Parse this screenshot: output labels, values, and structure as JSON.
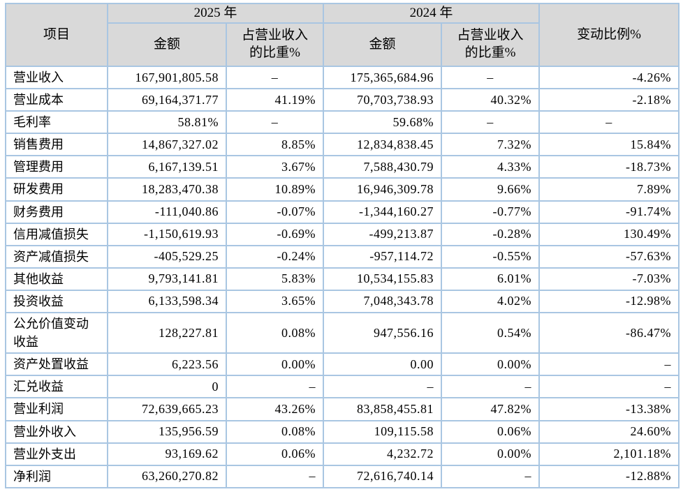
{
  "colors": {
    "border": "#a9c6e2",
    "header_bg": "#d9d9d9",
    "text": "#000000"
  },
  "table": {
    "header": {
      "item": "项目",
      "year2025": "2025 年",
      "year2024": "2024 年",
      "amount": "金额",
      "pct_of_revenue": "占营业收入\n的比重%",
      "change": "变动比例%"
    },
    "column_names": [
      "amount-2025",
      "pct-2025",
      "amount-2024",
      "pct-2024",
      "change-pct"
    ],
    "rows": [
      {
        "label": "营业收入",
        "cells": [
          {
            "v": "167,901,805.58"
          },
          {
            "v": "–",
            "a": "c"
          },
          {
            "v": "175,365,684.96"
          },
          {
            "v": "–",
            "a": "c"
          },
          {
            "v": "-4.26%"
          }
        ]
      },
      {
        "label": "营业成本",
        "cells": [
          {
            "v": "69,164,371.77"
          },
          {
            "v": "41.19%"
          },
          {
            "v": "70,703,738.93"
          },
          {
            "v": "40.32%"
          },
          {
            "v": "-2.18%"
          }
        ]
      },
      {
        "label": "毛利率",
        "cells": [
          {
            "v": "58.81%"
          },
          {
            "v": "–",
            "a": "c"
          },
          {
            "v": "59.68%"
          },
          {
            "v": "–",
            "a": "c"
          },
          {
            "v": "–",
            "a": "c"
          }
        ]
      },
      {
        "label": "销售费用",
        "cells": [
          {
            "v": "14,867,327.02"
          },
          {
            "v": "8.85%"
          },
          {
            "v": "12,834,838.45"
          },
          {
            "v": "7.32%"
          },
          {
            "v": "15.84%"
          }
        ]
      },
      {
        "label": "管理费用",
        "cells": [
          {
            "v": "6,167,139.51"
          },
          {
            "v": "3.67%"
          },
          {
            "v": "7,588,430.79"
          },
          {
            "v": "4.33%"
          },
          {
            "v": "-18.73%"
          }
        ]
      },
      {
        "label": "研发费用",
        "cells": [
          {
            "v": "18,283,470.38"
          },
          {
            "v": "10.89%"
          },
          {
            "v": "16,946,309.78"
          },
          {
            "v": "9.66%"
          },
          {
            "v": "7.89%"
          }
        ]
      },
      {
        "label": "财务费用",
        "cells": [
          {
            "v": "-111,040.86"
          },
          {
            "v": "-0.07%"
          },
          {
            "v": "-1,344,160.27"
          },
          {
            "v": "-0.77%"
          },
          {
            "v": "-91.74%"
          }
        ]
      },
      {
        "label": "信用减值损失",
        "cells": [
          {
            "v": "-1,150,619.93"
          },
          {
            "v": "-0.69%"
          },
          {
            "v": "-499,213.87"
          },
          {
            "v": "-0.28%"
          },
          {
            "v": "130.49%"
          }
        ]
      },
      {
        "label": "资产减值损失",
        "cells": [
          {
            "v": "-405,529.25"
          },
          {
            "v": "-0.24%"
          },
          {
            "v": "-957,114.72"
          },
          {
            "v": "-0.55%"
          },
          {
            "v": "-57.63%"
          }
        ]
      },
      {
        "label": "其他收益",
        "cells": [
          {
            "v": "9,793,141.81"
          },
          {
            "v": "5.83%"
          },
          {
            "v": "10,534,155.83"
          },
          {
            "v": "6.01%"
          },
          {
            "v": "-7.03%"
          }
        ]
      },
      {
        "label": "投资收益",
        "cells": [
          {
            "v": "6,133,598.34"
          },
          {
            "v": "3.65%"
          },
          {
            "v": "7,048,343.78"
          },
          {
            "v": "4.02%"
          },
          {
            "v": "-12.98%"
          }
        ]
      },
      {
        "label": "公允价值变动\n收益",
        "cells": [
          {
            "v": "128,227.81"
          },
          {
            "v": "0.08%"
          },
          {
            "v": "947,556.16"
          },
          {
            "v": "0.54%"
          },
          {
            "v": "-86.47%"
          }
        ]
      },
      {
        "label": "资产处置收益",
        "cells": [
          {
            "v": "6,223.56"
          },
          {
            "v": "0.00%"
          },
          {
            "v": "0.00"
          },
          {
            "v": "0.00%"
          },
          {
            "v": "–"
          }
        ]
      },
      {
        "label": "汇兑收益",
        "cells": [
          {
            "v": "0"
          },
          {
            "v": "–"
          },
          {
            "v": "–"
          },
          {
            "v": "–"
          },
          {
            "v": "–"
          }
        ]
      },
      {
        "label": "营业利润",
        "cells": [
          {
            "v": "72,639,665.23"
          },
          {
            "v": "43.26%"
          },
          {
            "v": "83,858,455.81"
          },
          {
            "v": "47.82%"
          },
          {
            "v": "-13.38%"
          }
        ]
      },
      {
        "label": "营业外收入",
        "cells": [
          {
            "v": "135,956.59"
          },
          {
            "v": "0.08%"
          },
          {
            "v": "109,115.58"
          },
          {
            "v": "0.06%"
          },
          {
            "v": "24.60%"
          }
        ]
      },
      {
        "label": "营业外支出",
        "cells": [
          {
            "v": "93,169.62"
          },
          {
            "v": "0.06%"
          },
          {
            "v": "4,232.72"
          },
          {
            "v": "0.00%"
          },
          {
            "v": "2,101.18%"
          }
        ]
      },
      {
        "label": "净利润",
        "cells": [
          {
            "v": "63,260,270.82"
          },
          {
            "v": "–"
          },
          {
            "v": "72,616,740.14"
          },
          {
            "v": "–"
          },
          {
            "v": "-12.88%"
          }
        ]
      }
    ]
  }
}
